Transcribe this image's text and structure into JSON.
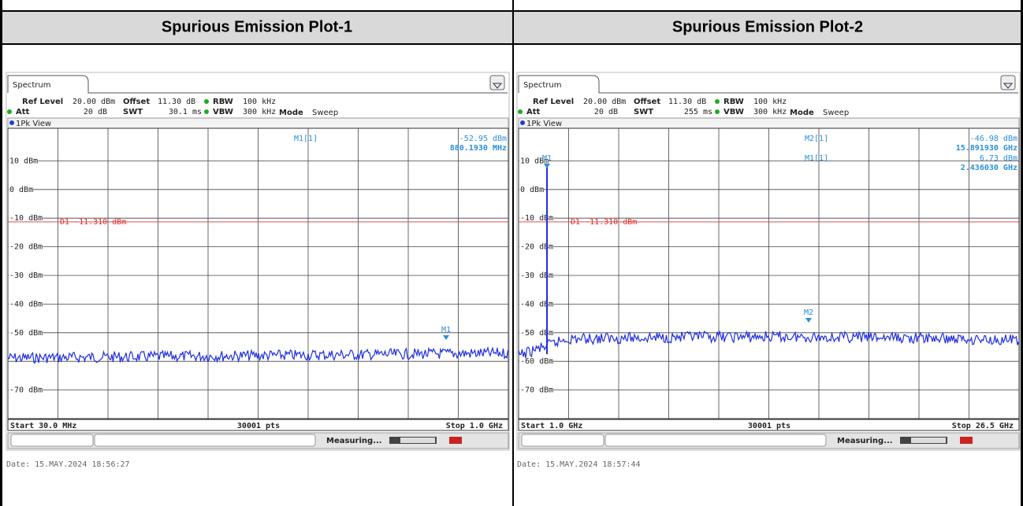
{
  "header": {
    "titles": [
      "Spurious Emission Plot-1",
      "Spurious Emission Plot-2"
    ]
  },
  "plots": [
    {
      "tab": "Spectrum",
      "ref_level_label": "Ref Level",
      "ref_level": "20.00 dBm",
      "offset_label": "Offset",
      "offset": "11.30 dB",
      "rbw_label": "RBW",
      "rbw": "100 kHz",
      "att_label": "Att",
      "att": "20 dB",
      "swt_label": "SWT",
      "swt": "30.1 ms",
      "vbw_label": "VBW",
      "vbw": "300 kHz",
      "mode_label": "Mode",
      "mode": "Sweep",
      "view": "1Pk View",
      "y_labels": [
        "10 dBm",
        "0 dBm",
        "-10 dBm",
        "-20 dBm",
        "-30 dBm",
        "-40 dBm",
        "-50 dBm",
        null,
        "-70 dBm"
      ],
      "display_line": "D1 -11.310 dBm",
      "readouts": [
        {
          "name": "M1[1]",
          "level": "-52.95 dBm",
          "freq": "880.1930 MHz"
        }
      ],
      "marker_tags": [
        "M1"
      ],
      "start": "Start 30.0 MHz",
      "points": "30001 pts",
      "stop": "Stop 1.0 GHz",
      "status": "Measuring...",
      "date": "Date: 15.MAY.2024  18:56:27"
    },
    {
      "tab": "Spectrum",
      "ref_level_label": "Ref Level",
      "ref_level": "20.00 dBm",
      "offset_label": "Offset",
      "offset": "11.30 dB",
      "rbw_label": "RBW",
      "rbw": "100 kHz",
      "att_label": "Att",
      "att": "20 dB",
      "swt_label": "SWT",
      "swt": "255 ms",
      "vbw_label": "VBW",
      "vbw": "300 kHz",
      "mode_label": "Mode",
      "mode": "Sweep",
      "view": "1Pk View",
      "y_labels": [
        "10 dBm",
        "0 dBm",
        "-10 dBm",
        "-20 dBm",
        "-30 dBm",
        "-40 dBm",
        "-50 dBm",
        "-60 dBm",
        "-70 dBm"
      ],
      "display_line": "D1 -11.310 dBm",
      "readouts": [
        {
          "name": "M2[1]",
          "level": "-46.98 dBm",
          "freq": "15.891930 GHz"
        },
        {
          "name": "M1[1]",
          "level": "6.73 dBm",
          "freq": "2.436030 GHz"
        }
      ],
      "marker_tags": [
        "M2",
        "M1"
      ],
      "start": "Start 1.0 GHz",
      "points": "30001 pts",
      "stop": "Stop 26.5 GHz",
      "status": "Measuring...",
      "date": "Date: 15.MAY.2024  18:57:44"
    }
  ]
}
